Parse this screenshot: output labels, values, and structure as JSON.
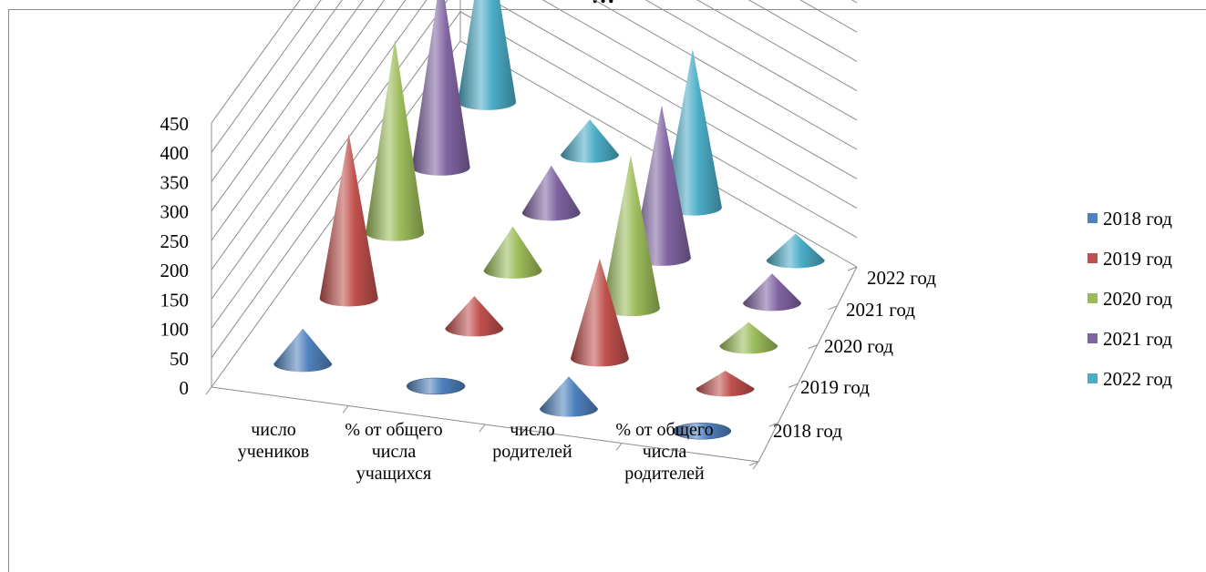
{
  "chart_data": {
    "type": "3d-cone",
    "title": "…",
    "categories": [
      "число учеников",
      "% от общего числа учащихся",
      "число родителей",
      "% от общего числа родителей"
    ],
    "category_lines": [
      [
        "число",
        "учеников"
      ],
      [
        "% от общего",
        "числа",
        "учащихся"
      ],
      [
        "число",
        "родителей"
      ],
      [
        "% от общего",
        "числа",
        "родителей"
      ]
    ],
    "depth_axis": [
      "2018 год",
      "2019 год",
      "2020 год",
      "2021 год",
      "2022 год"
    ],
    "ylim": [
      0,
      450
    ],
    "yticks": [
      0,
      50,
      100,
      150,
      200,
      250,
      300,
      350,
      400,
      450
    ],
    "grid": true,
    "legend_position": "right",
    "series": [
      {
        "name": "2018 год",
        "color": "#4f81bd",
        "values": [
          60,
          0,
          55,
          0
        ]
      },
      {
        "name": "2019 год",
        "color": "#c0504d",
        "values": [
          280,
          55,
          170,
          30
        ]
      },
      {
        "name": "2020 год",
        "color": "#9bbb59",
        "values": [
          330,
          75,
          260,
          40
        ]
      },
      {
        "name": "2021 год",
        "color": "#8064a2",
        "values": [
          330,
          80,
          260,
          50
        ]
      },
      {
        "name": "2022 год",
        "color": "#4bacc6",
        "values": [
          310,
          60,
          270,
          45
        ]
      }
    ]
  }
}
